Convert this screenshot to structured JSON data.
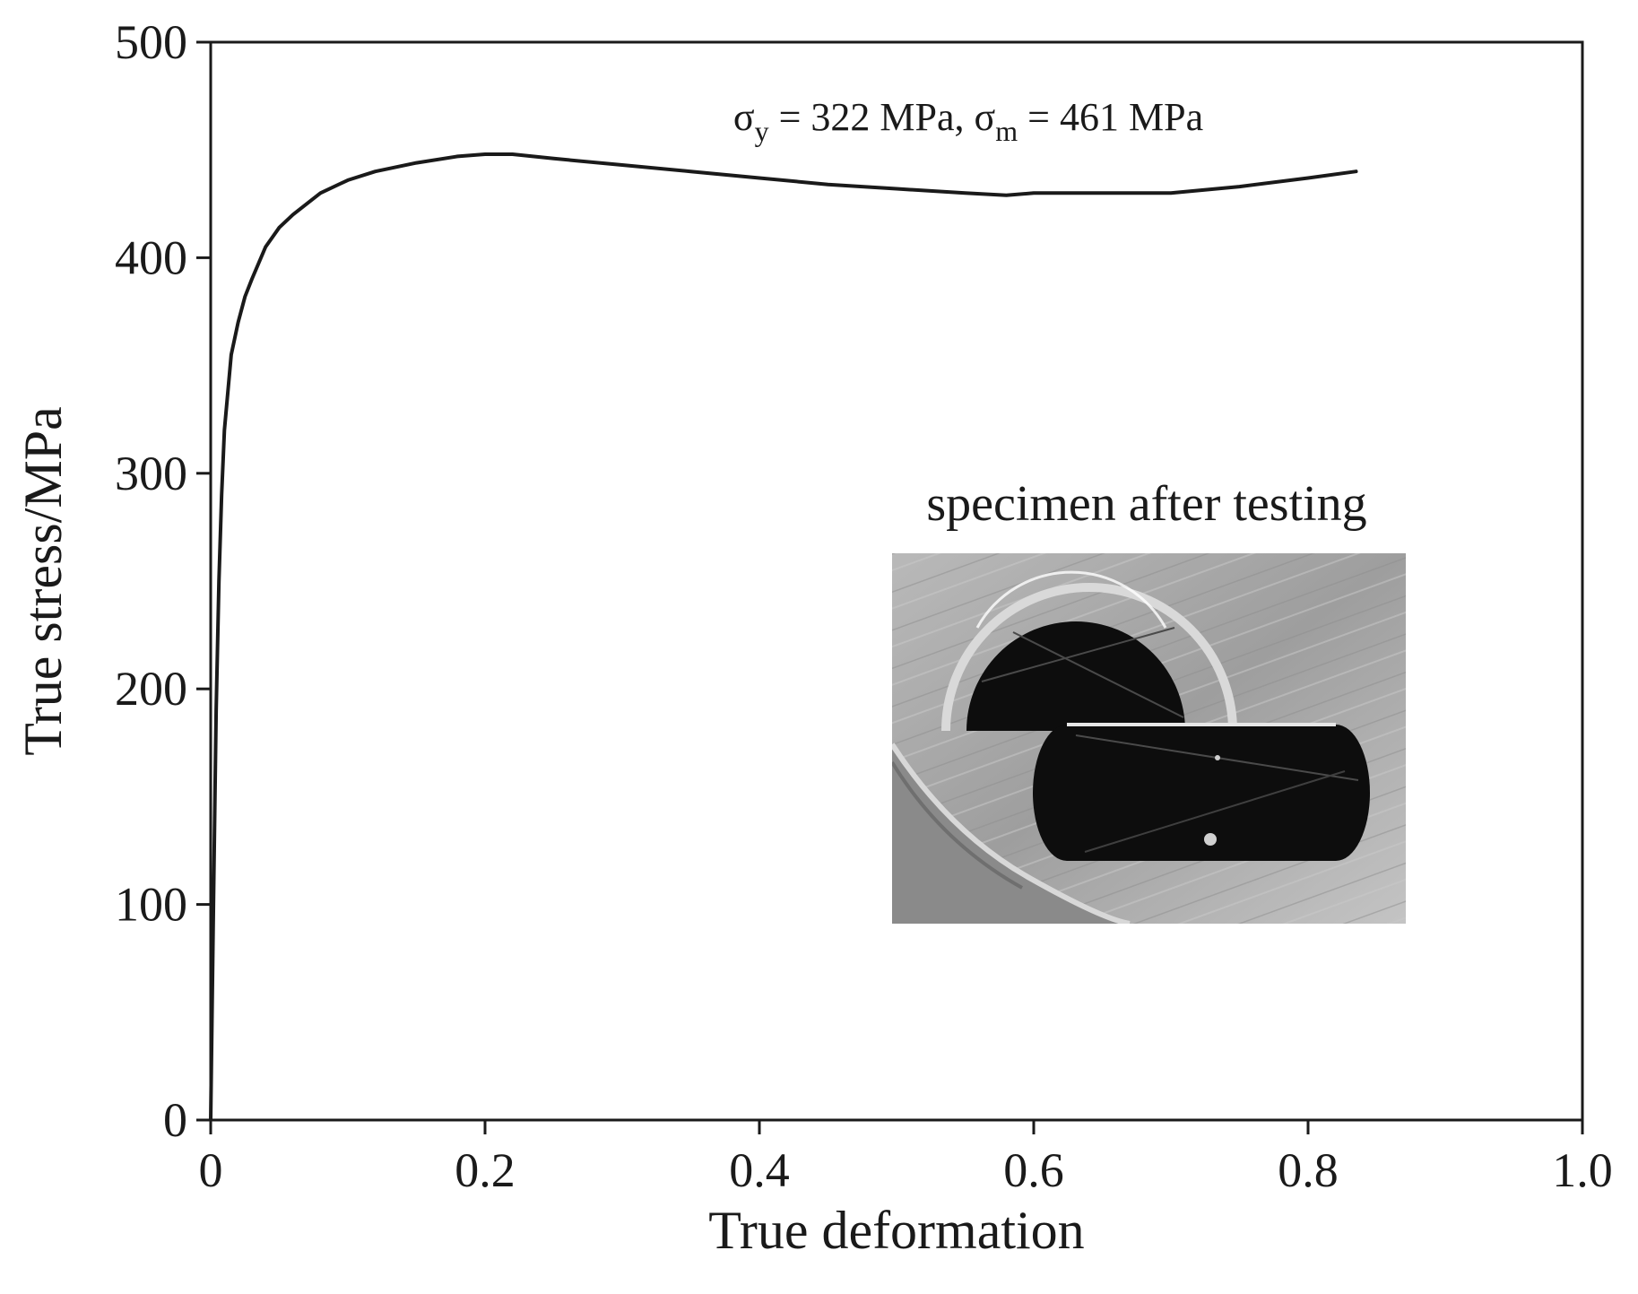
{
  "chart_data": {
    "type": "line",
    "xlabel": "True deformation",
    "ylabel": "True stress/MPa",
    "xlim": [
      0,
      1.0
    ],
    "ylim": [
      0,
      500
    ],
    "x_ticks": [
      0,
      0.2,
      0.4,
      0.6,
      0.8,
      1.0
    ],
    "x_tick_labels": [
      "0",
      "0.2",
      "0.4",
      "0.6",
      "0.8",
      "1.0"
    ],
    "y_ticks": [
      0,
      100,
      200,
      300,
      400,
      500
    ],
    "y_tick_labels": [
      "0",
      "100",
      "200",
      "300",
      "400",
      "500"
    ],
    "grid": false,
    "series": [
      {
        "x": [
          0,
          0.002,
          0.004,
          0.006,
          0.008,
          0.01,
          0.015,
          0.02,
          0.025,
          0.03,
          0.04,
          0.05,
          0.06,
          0.07,
          0.08,
          0.1,
          0.12,
          0.15,
          0.18,
          0.2,
          0.22,
          0.25,
          0.3,
          0.35,
          0.4,
          0.45,
          0.5,
          0.55,
          0.58,
          0.6,
          0.65,
          0.7,
          0.75,
          0.8,
          0.835
        ],
        "y": [
          0,
          100,
          190,
          250,
          290,
          320,
          355,
          370,
          382,
          390,
          405,
          414,
          420,
          425,
          430,
          436,
          440,
          444,
          447,
          448,
          448,
          446,
          443,
          440,
          437,
          434,
          432,
          430,
          429,
          430,
          430,
          430,
          433,
          437,
          440
        ]
      }
    ],
    "annotations": [
      {
        "sigma": "σ",
        "sub1": "y",
        "text1": " = 322 MPa, ",
        "sub2": "m",
        "text2": " = 461 MPa"
      }
    ],
    "inset": {
      "title": "specimen after testing"
    }
  },
  "colors": {
    "line": "#1a1a1a",
    "axes": "#1a1a1a",
    "inset_background": "#a8a8a8",
    "specimen": "#0d0d0d"
  }
}
